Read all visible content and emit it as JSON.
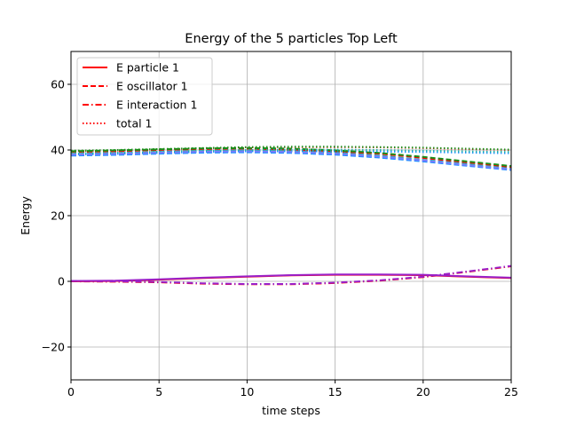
{
  "chart_data": {
    "type": "line",
    "title": "Energy of the 5 particles Top Left",
    "xlabel": "time steps",
    "ylabel": "Energy",
    "xlim": [
      0,
      25
    ],
    "ylim": [
      -30,
      70
    ],
    "xticks": [
      0,
      5,
      10,
      15,
      20,
      25
    ],
    "yticks": [
      -20,
      0,
      20,
      40,
      60
    ],
    "grid": true,
    "legend_position": "upper-left",
    "legend": [
      {
        "label": "E particle 1",
        "style": "solid",
        "color": "#ff0000"
      },
      {
        "label": "E oscillator 1",
        "style": "dashed",
        "color": "#ff0000"
      },
      {
        "label": "E interaction 1",
        "style": "dashdot",
        "color": "#ff0000"
      },
      {
        "label": "total 1",
        "style": "dotted",
        "color": "#ff0000"
      }
    ],
    "x": [
      0,
      2.5,
      5,
      7.5,
      10,
      12.5,
      15,
      17.5,
      20,
      22.5,
      25
    ],
    "series": [
      {
        "color": "#ff0000",
        "style": "solid",
        "values": [
          0,
          0.1,
          0.5,
          1.0,
          1.4,
          1.8,
          2.0,
          2.0,
          1.9,
          1.4,
          1.0
        ]
      },
      {
        "color": "#ff0000",
        "style": "dashed",
        "values": [
          39.4,
          39.6,
          40.0,
          40.3,
          40.4,
          40.1,
          39.6,
          38.9,
          37.6,
          36.2,
          34.8
        ]
      },
      {
        "color": "#ff0000",
        "style": "dashdot",
        "values": [
          0,
          -0.1,
          -0.3,
          -0.7,
          -0.9,
          -0.9,
          -0.5,
          0.2,
          1.3,
          2.9,
          4.6
        ]
      },
      {
        "color": "#ff0000",
        "style": "dotted",
        "values": [
          39.7,
          39.8,
          40.2,
          40.5,
          40.8,
          40.9,
          40.9,
          40.8,
          40.6,
          40.3,
          40.0
        ]
      },
      {
        "color": "#1e90ff",
        "style": "dashed",
        "values": [
          38.3,
          38.5,
          38.9,
          39.2,
          39.3,
          39.1,
          38.6,
          37.7,
          36.5,
          35.2,
          33.9
        ]
      },
      {
        "color": "#1e90ff",
        "style": "dotted",
        "values": [
          38.6,
          38.8,
          39.1,
          39.4,
          39.6,
          39.6,
          39.6,
          39.5,
          39.4,
          39.2,
          39.0
        ]
      },
      {
        "color": "#1a8f1a",
        "style": "dashed",
        "values": [
          39.6,
          39.9,
          40.2,
          40.5,
          40.6,
          40.4,
          39.9,
          39.1,
          37.9,
          36.5,
          35.1
        ]
      },
      {
        "color": "#1a8f1a",
        "style": "dotted",
        "values": [
          39.8,
          40.0,
          40.3,
          40.6,
          40.9,
          41.0,
          41.0,
          40.9,
          40.7,
          40.4,
          40.1
        ]
      },
      {
        "color": "#20b2aa",
        "style": "dashed",
        "values": [
          38.8,
          39.0,
          39.4,
          39.7,
          39.8,
          39.6,
          39.1,
          38.3,
          37.0,
          35.7,
          34.3
        ]
      },
      {
        "color": "#20b2aa",
        "style": "dotted",
        "values": [
          39.0,
          39.2,
          39.5,
          39.8,
          40.0,
          40.1,
          40.1,
          40.0,
          39.8,
          39.6,
          39.4
        ]
      },
      {
        "color": "#9a1fc8",
        "style": "solid",
        "values": [
          0.1,
          0.2,
          0.6,
          1.1,
          1.5,
          1.9,
          2.1,
          2.1,
          2.0,
          1.5,
          1.1
        ]
      },
      {
        "color": "#9a1fc8",
        "style": "dashdot",
        "values": [
          0.1,
          0.0,
          -0.2,
          -0.6,
          -0.8,
          -0.8,
          -0.4,
          0.3,
          1.4,
          3.0,
          4.7
        ]
      },
      {
        "color": "#7b7bff",
        "style": "dashed",
        "values": [
          38.6,
          38.8,
          39.2,
          39.5,
          39.6,
          39.4,
          38.9,
          38.0,
          36.8,
          35.4,
          34.1
        ]
      }
    ]
  }
}
